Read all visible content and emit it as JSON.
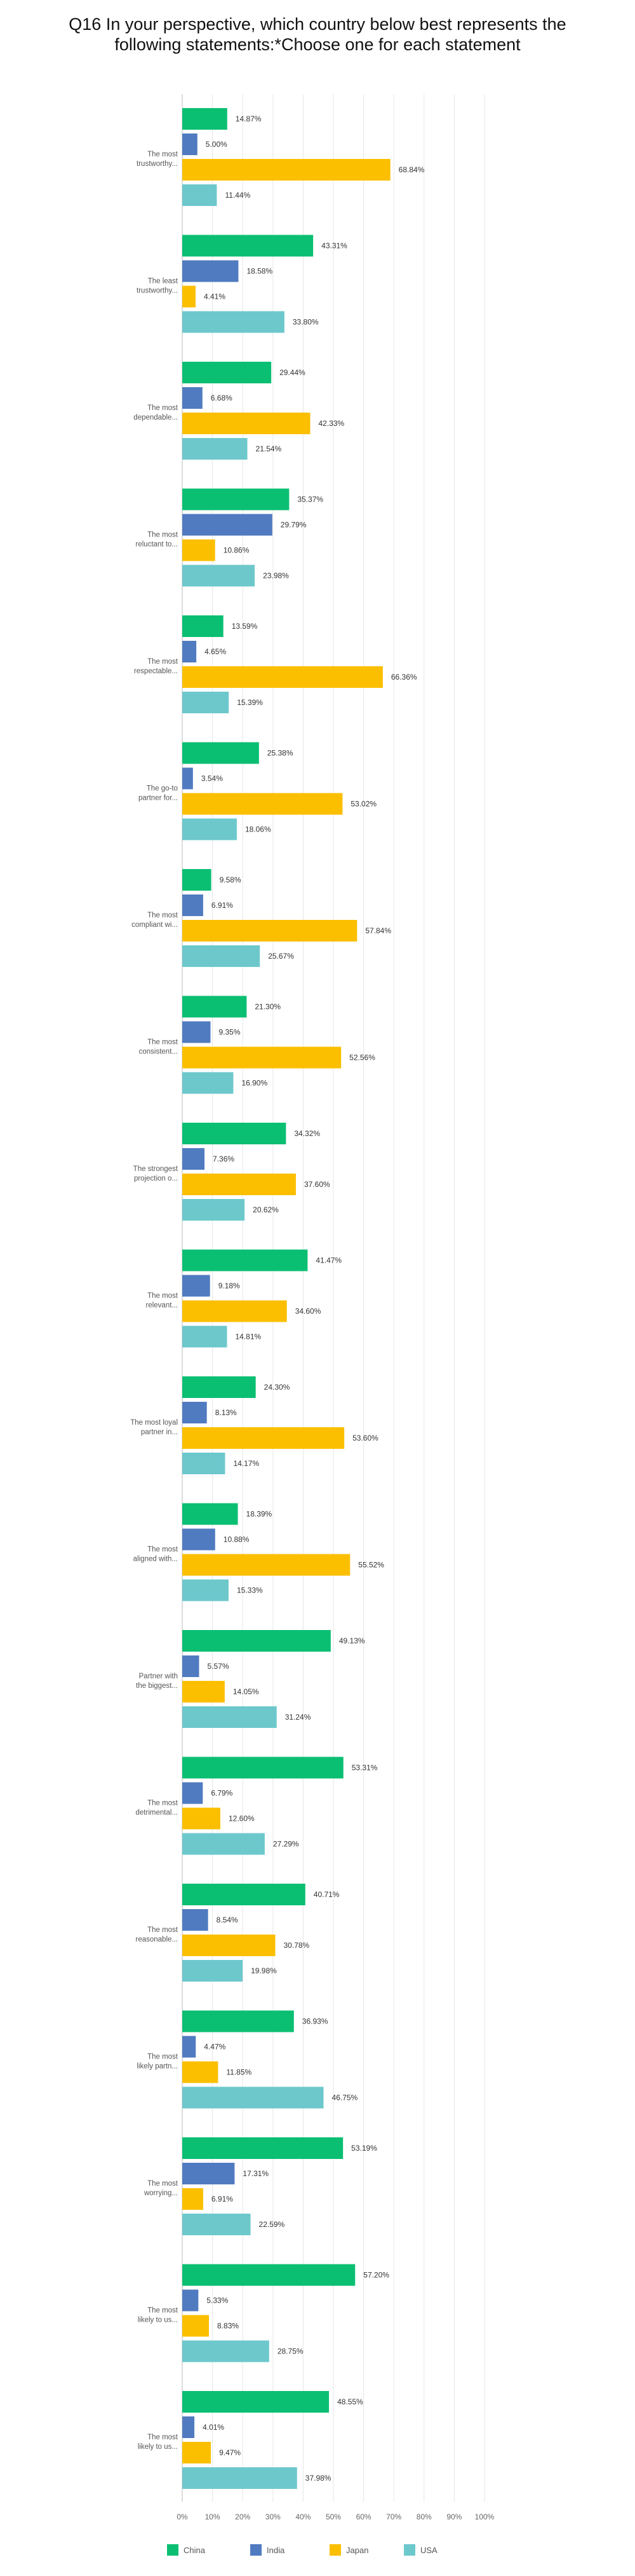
{
  "chart_data": {
    "type": "bar",
    "orientation": "horizontal",
    "title": "Q16 In your perspective, which country below best represents the following statements:*Choose one for each statement",
    "xlabel": "",
    "ylabel": "",
    "xlim": [
      0,
      100
    ],
    "x_ticks": [
      "0%",
      "10%",
      "20%",
      "30%",
      "40%",
      "50%",
      "60%",
      "70%",
      "80%",
      "90%",
      "100%"
    ],
    "grid": true,
    "legend_position": "bottom",
    "value_suffix": "%",
    "categories": [
      [
        "The most",
        "trustworthy..."
      ],
      [
        "The least",
        "trustworthy..."
      ],
      [
        "The most",
        "dependable..."
      ],
      [
        "The most",
        "reluctant to..."
      ],
      [
        "The most",
        "respectable..."
      ],
      [
        "The go-to",
        "partner for..."
      ],
      [
        "The most",
        "compliant wi..."
      ],
      [
        "The most",
        "consistent..."
      ],
      [
        "The strongest",
        "projection o..."
      ],
      [
        "The most",
        "relevant..."
      ],
      [
        "The most loyal",
        "partner in..."
      ],
      [
        "The most",
        "aligned with..."
      ],
      [
        "Partner with",
        "the biggest..."
      ],
      [
        "The most",
        "detrimental..."
      ],
      [
        "The most",
        "reasonable..."
      ],
      [
        "The most",
        "likely partn..."
      ],
      [
        "The most",
        "worrying..."
      ],
      [
        "The most",
        "likely to us..."
      ],
      [
        "The most",
        "likely to us..."
      ]
    ],
    "series": [
      {
        "name": "China",
        "color": "#0bbf72",
        "values": [
          14.87,
          43.31,
          29.44,
          35.37,
          13.59,
          25.38,
          9.58,
          21.3,
          34.32,
          41.47,
          24.3,
          18.39,
          49.13,
          53.31,
          40.71,
          36.93,
          53.19,
          57.2,
          48.55
        ]
      },
      {
        "name": "India",
        "color": "#507bc0",
        "values": [
          5.0,
          18.58,
          6.68,
          29.79,
          4.65,
          3.54,
          6.91,
          9.35,
          7.36,
          9.18,
          8.13,
          10.88,
          5.57,
          6.79,
          8.54,
          4.47,
          17.31,
          5.33,
          4.01
        ]
      },
      {
        "name": "Japan",
        "color": "#fbbf00",
        "values": [
          68.84,
          4.41,
          42.33,
          10.86,
          66.36,
          53.02,
          57.84,
          52.56,
          37.6,
          34.6,
          53.6,
          55.52,
          14.05,
          12.6,
          30.78,
          11.85,
          6.91,
          8.83,
          9.47
        ]
      },
      {
        "name": "USA",
        "color": "#6dc8cc",
        "values": [
          11.44,
          33.8,
          21.54,
          23.98,
          15.39,
          18.06,
          25.67,
          16.9,
          20.62,
          14.81,
          14.17,
          15.33,
          31.24,
          27.29,
          19.98,
          46.75,
          22.59,
          28.75,
          37.98
        ]
      }
    ]
  }
}
